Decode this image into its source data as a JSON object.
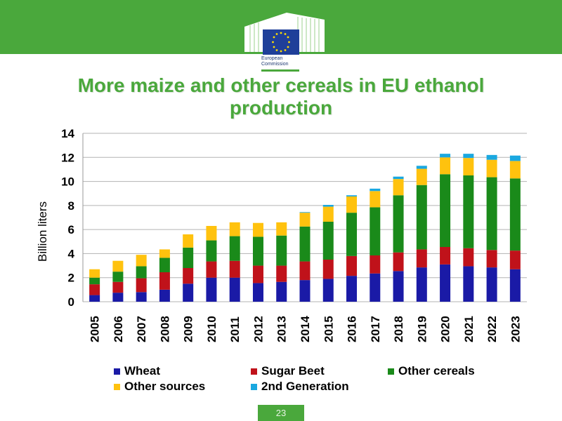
{
  "header": {
    "logo_text_line1": "European",
    "logo_text_line2": "Commission"
  },
  "slide_title_line1": "More maize and other cereals in EU ethanol",
  "slide_title_line2": "production",
  "page_number": "23",
  "colors": {
    "brand_green": "#4aa83c",
    "wheat": "#1a1aa6",
    "sugar_beet": "#c0121a",
    "other_cereals": "#1a8a1a",
    "other_sources": "#ffc20e",
    "second_generation": "#1aa8e0"
  },
  "chart_data": {
    "type": "bar",
    "stacked": true,
    "categories": [
      "2005",
      "2006",
      "2007",
      "2008",
      "2009",
      "2010",
      "2011",
      "2012",
      "2013",
      "2014",
      "2015",
      "2016",
      "2017",
      "2018",
      "2019",
      "2020",
      "2021",
      "2022",
      "2023"
    ],
    "ylabel": "Billion liters",
    "ylim": [
      0,
      14
    ],
    "yticks": [
      "0",
      "2",
      "4",
      "6",
      "8",
      "10",
      "12",
      "14"
    ],
    "grid": true,
    "legend_position": "bottom",
    "series": [
      {
        "name": "Wheat",
        "values": [
          0.55,
          0.75,
          0.8,
          1.0,
          1.5,
          2.0,
          2.0,
          1.55,
          1.65,
          1.8,
          1.9,
          2.15,
          2.35,
          2.55,
          2.85,
          3.1,
          2.95,
          2.85,
          2.7
        ]
      },
      {
        "name": "Sugar Beet",
        "values": [
          0.9,
          0.9,
          1.15,
          1.45,
          1.3,
          1.35,
          1.4,
          1.45,
          1.35,
          1.55,
          1.6,
          1.65,
          1.5,
          1.55,
          1.5,
          1.45,
          1.5,
          1.45,
          1.55
        ]
      },
      {
        "name": "Other cereals",
        "values": [
          0.55,
          0.85,
          1.0,
          1.2,
          1.7,
          1.75,
          2.05,
          2.4,
          2.5,
          2.9,
          3.15,
          3.6,
          4.0,
          4.75,
          5.35,
          6.05,
          6.05,
          6.05,
          6.0
        ]
      },
      {
        "name": "Other sources",
        "values": [
          0.7,
          0.9,
          0.95,
          0.7,
          1.1,
          1.2,
          1.15,
          1.15,
          1.1,
          1.15,
          1.25,
          1.35,
          1.35,
          1.35,
          1.35,
          1.4,
          1.45,
          1.45,
          1.45
        ]
      },
      {
        "name": "2nd Generation",
        "values": [
          0,
          0,
          0,
          0,
          0,
          0,
          0,
          0,
          0,
          0.05,
          0.15,
          0.1,
          0.2,
          0.2,
          0.25,
          0.3,
          0.35,
          0.4,
          0.45
        ]
      }
    ]
  },
  "legend": {
    "items": [
      {
        "label": "Wheat",
        "color": "#1a1aa6"
      },
      {
        "label": "Sugar Beet",
        "color": "#c0121a"
      },
      {
        "label": "Other cereals",
        "color": "#1a8a1a"
      },
      {
        "label": "Other sources",
        "color": "#ffc20e"
      },
      {
        "label": "2nd Generation",
        "color": "#1aa8e0"
      }
    ]
  }
}
